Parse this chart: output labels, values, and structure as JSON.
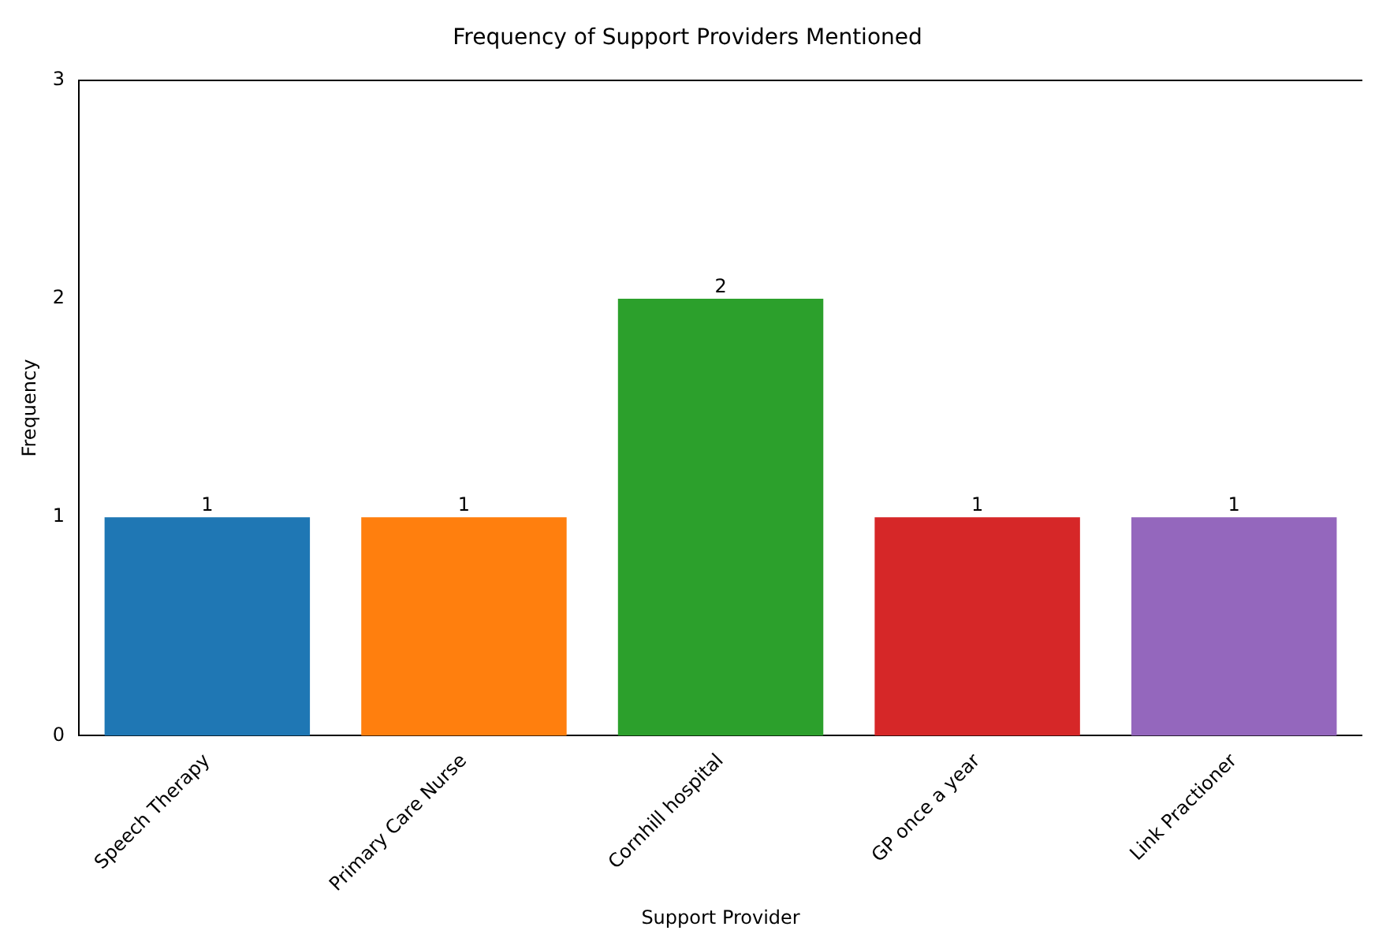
{
  "chart_data": {
    "type": "bar",
    "title": "Frequency of Support Providers Mentioned",
    "xlabel": "Support Provider",
    "ylabel": "Frequency",
    "categories": [
      "Speech Therapy",
      "Primary Care Nurse",
      "Cornhill hospital",
      "GP once a year",
      "Link Practioner"
    ],
    "values": [
      1,
      1,
      2,
      1,
      1
    ],
    "colors": [
      "#1f77b4",
      "#ff7f0e",
      "#2ca02c",
      "#d62728",
      "#9467bd"
    ],
    "ylim": [
      0,
      3
    ],
    "yticks": [
      0,
      1,
      2,
      3
    ],
    "grid": false,
    "legend": false,
    "data_labels": true
  }
}
